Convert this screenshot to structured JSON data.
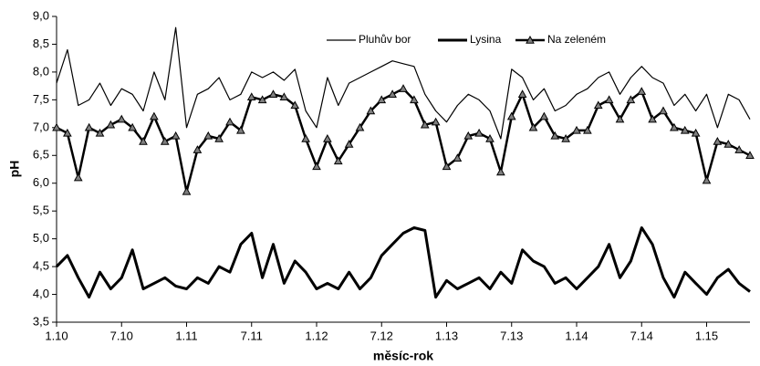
{
  "chart_data": {
    "type": "line",
    "xlabel": "měsíc-rok",
    "ylabel": "pH",
    "categories": [
      "1.10",
      null,
      null,
      null,
      null,
      null,
      "7.10",
      null,
      null,
      null,
      null,
      null,
      "1.11",
      null,
      null,
      null,
      null,
      null,
      "7.11",
      null,
      null,
      null,
      null,
      null,
      "1.12",
      null,
      null,
      null,
      null,
      null,
      "7.12",
      null,
      null,
      null,
      null,
      null,
      "1.13",
      null,
      null,
      null,
      null,
      null,
      "7.13",
      null,
      null,
      null,
      null,
      null,
      "1.14",
      null,
      null,
      null,
      null,
      null,
      "7.14",
      null,
      null,
      null,
      null,
      null,
      "1.15",
      null,
      null,
      null,
      null
    ],
    "ylim": [
      3.5,
      9.0
    ],
    "yticks": [
      {
        "value": 3.5,
        "label": "3,5"
      },
      {
        "value": 4.0,
        "label": "4,0"
      },
      {
        "value": 4.5,
        "label": "4,5"
      },
      {
        "value": 5.0,
        "label": "5,0"
      },
      {
        "value": 5.5,
        "label": "5,5"
      },
      {
        "value": 6.0,
        "label": "6,0"
      },
      {
        "value": 6.5,
        "label": "6,5"
      },
      {
        "value": 7.0,
        "label": "7,0"
      },
      {
        "value": 7.5,
        "label": "7,5"
      },
      {
        "value": 8.0,
        "label": "8,0"
      },
      {
        "value": 8.5,
        "label": "8,5"
      },
      {
        "value": 9.0,
        "label": "9,0"
      }
    ],
    "series": [
      {
        "name": "Pluhův bor",
        "color": "#000000",
        "line_width": 1.2,
        "marker": null,
        "values": [
          7.8,
          8.4,
          7.4,
          7.5,
          7.8,
          7.4,
          7.7,
          7.6,
          7.3,
          8.0,
          7.5,
          8.8,
          7.0,
          7.6,
          7.7,
          7.9,
          7.5,
          7.6,
          8.0,
          7.9,
          8.0,
          7.85,
          8.05,
          7.3,
          7.0,
          7.9,
          7.4,
          7.8,
          7.9,
          8.0,
          8.1,
          8.2,
          8.15,
          8.1,
          7.6,
          7.3,
          7.1,
          7.4,
          7.6,
          7.5,
          7.3,
          6.8,
          8.05,
          7.9,
          7.5,
          7.7,
          7.3,
          7.4,
          7.6,
          7.7,
          7.9,
          8.0,
          7.6,
          7.9,
          8.1,
          7.9,
          7.8,
          7.4,
          7.6,
          7.3,
          7.6,
          7.0,
          7.6,
          7.5,
          7.15
        ]
      },
      {
        "name": "Lysina",
        "color": "#000000",
        "line_width": 3,
        "marker": null,
        "values": [
          4.5,
          4.7,
          4.3,
          3.95,
          4.4,
          4.1,
          4.3,
          4.8,
          4.1,
          4.2,
          4.3,
          4.15,
          4.1,
          4.3,
          4.2,
          4.5,
          4.4,
          4.9,
          5.1,
          4.3,
          4.9,
          4.2,
          4.6,
          4.4,
          4.1,
          4.2,
          4.1,
          4.4,
          4.1,
          4.3,
          4.7,
          4.9,
          5.1,
          5.2,
          5.15,
          3.95,
          4.25,
          4.1,
          4.2,
          4.3,
          4.1,
          4.4,
          4.2,
          4.8,
          4.6,
          4.5,
          4.2,
          4.3,
          4.1,
          4.3,
          4.5,
          4.9,
          4.3,
          4.6,
          5.2,
          4.9,
          4.3,
          3.95,
          4.4,
          4.2,
          4.0,
          4.3,
          4.45,
          4.2,
          4.05
        ]
      },
      {
        "name": "Na zeleném",
        "color": "#000000",
        "line_width": 2.5,
        "marker": "triangle",
        "marker_color": "#7f7f7f",
        "values": [
          7.0,
          6.9,
          6.1,
          7.0,
          6.9,
          7.05,
          7.15,
          7.0,
          6.75,
          7.2,
          6.75,
          6.85,
          5.85,
          6.6,
          6.85,
          6.8,
          7.1,
          6.95,
          7.55,
          7.5,
          7.6,
          7.55,
          7.4,
          6.8,
          6.3,
          6.8,
          6.4,
          6.7,
          7.0,
          7.3,
          7.5,
          7.6,
          7.7,
          7.5,
          7.05,
          7.1,
          6.3,
          6.45,
          6.85,
          6.9,
          6.8,
          6.2,
          7.2,
          7.6,
          7.0,
          7.2,
          6.85,
          6.8,
          6.95,
          6.95,
          7.4,
          7.5,
          7.15,
          7.5,
          7.65,
          7.15,
          7.3,
          7.0,
          6.95,
          6.9,
          6.05,
          6.75,
          6.7,
          6.6,
          6.5
        ]
      }
    ]
  }
}
